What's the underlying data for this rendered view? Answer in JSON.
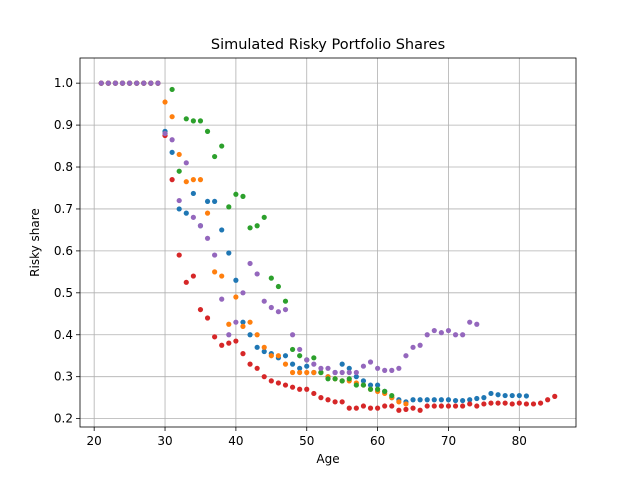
{
  "chart_data": {
    "type": "scatter",
    "title": "Simulated Risky Portfolio Shares",
    "xlabel": "Age",
    "ylabel": "Risky share",
    "xlim": [
      18,
      88
    ],
    "ylim": [
      0.18,
      1.06
    ],
    "xticks": [
      20,
      30,
      40,
      50,
      60,
      70,
      80
    ],
    "yticks": [
      0.2,
      0.3,
      0.4,
      0.5,
      0.6,
      0.7,
      0.8,
      0.9,
      1.0
    ],
    "xtick_labels": [
      "20",
      "30",
      "40",
      "50",
      "60",
      "70",
      "80"
    ],
    "ytick_labels": [
      "0.2",
      "0.3",
      "0.4",
      "0.5",
      "0.6",
      "0.7",
      "0.8",
      "0.9",
      "1.0"
    ],
    "grid": true,
    "legend": false,
    "series": [
      {
        "color": "#1f77b4",
        "points": [
          [
            21,
            1.0
          ],
          [
            22,
            1.0
          ],
          [
            23,
            1.0
          ],
          [
            24,
            1.0
          ],
          [
            25,
            1.0
          ],
          [
            26,
            1.0
          ],
          [
            27,
            1.0
          ],
          [
            28,
            1.0
          ],
          [
            29,
            1.0
          ],
          [
            30,
            0.885
          ],
          [
            31,
            0.835
          ],
          [
            32,
            0.7
          ],
          [
            33,
            0.69
          ],
          [
            34,
            0.737
          ],
          [
            35,
            0.66
          ],
          [
            36,
            0.718
          ],
          [
            37,
            0.718
          ],
          [
            38,
            0.65
          ],
          [
            39,
            0.595
          ],
          [
            40,
            0.53
          ],
          [
            41,
            0.43
          ],
          [
            42,
            0.4
          ],
          [
            43,
            0.37
          ],
          [
            44,
            0.36
          ],
          [
            45,
            0.355
          ],
          [
            46,
            0.345
          ],
          [
            47,
            0.35
          ],
          [
            48,
            0.33
          ],
          [
            49,
            0.32
          ],
          [
            50,
            0.325
          ],
          [
            51,
            0.31
          ],
          [
            52,
            0.31
          ],
          [
            53,
            0.3
          ],
          [
            54,
            0.31
          ],
          [
            55,
            0.33
          ],
          [
            56,
            0.32
          ],
          [
            57,
            0.3
          ],
          [
            58,
            0.29
          ],
          [
            59,
            0.28
          ],
          [
            60,
            0.28
          ],
          [
            61,
            0.265
          ],
          [
            62,
            0.25
          ],
          [
            63,
            0.245
          ],
          [
            64,
            0.24
          ],
          [
            65,
            0.245
          ],
          [
            66,
            0.245
          ],
          [
            67,
            0.245
          ],
          [
            68,
            0.245
          ],
          [
            69,
            0.245
          ],
          [
            70,
            0.245
          ],
          [
            71,
            0.243
          ],
          [
            72,
            0.243
          ],
          [
            73,
            0.245
          ],
          [
            74,
            0.248
          ],
          [
            75,
            0.25
          ],
          [
            76,
            0.26
          ],
          [
            77,
            0.257
          ],
          [
            78,
            0.255
          ],
          [
            79,
            0.255
          ],
          [
            80,
            0.255
          ],
          [
            81,
            0.254
          ]
        ]
      },
      {
        "color": "#ff7f0e",
        "points": [
          [
            21,
            1.0
          ],
          [
            22,
            1.0
          ],
          [
            23,
            1.0
          ],
          [
            24,
            1.0
          ],
          [
            25,
            1.0
          ],
          [
            26,
            1.0
          ],
          [
            27,
            1.0
          ],
          [
            28,
            1.0
          ],
          [
            29,
            1.0
          ],
          [
            30,
            0.955
          ],
          [
            31,
            0.92
          ],
          [
            32,
            0.83
          ],
          [
            33,
            0.765
          ],
          [
            34,
            0.77
          ],
          [
            35,
            0.77
          ],
          [
            36,
            0.69
          ],
          [
            37,
            0.55
          ],
          [
            38,
            0.54
          ],
          [
            39,
            0.425
          ],
          [
            40,
            0.49
          ],
          [
            41,
            0.42
          ],
          [
            42,
            0.43
          ],
          [
            43,
            0.4
          ],
          [
            44,
            0.37
          ],
          [
            45,
            0.35
          ],
          [
            46,
            0.35
          ],
          [
            47,
            0.33
          ],
          [
            48,
            0.31
          ],
          [
            49,
            0.31
          ],
          [
            50,
            0.31
          ],
          [
            51,
            0.31
          ],
          [
            52,
            0.31
          ],
          [
            53,
            0.3
          ],
          [
            54,
            0.295
          ],
          [
            55,
            0.29
          ],
          [
            56,
            0.29
          ],
          [
            57,
            0.285
          ],
          [
            58,
            0.28
          ],
          [
            59,
            0.27
          ],
          [
            60,
            0.265
          ],
          [
            61,
            0.26
          ],
          [
            62,
            0.25
          ],
          [
            63,
            0.24
          ],
          [
            64,
            0.235
          ]
        ]
      },
      {
        "color": "#2ca02c",
        "points": [
          [
            21,
            1.0
          ],
          [
            22,
            1.0
          ],
          [
            23,
            1.0
          ],
          [
            24,
            1.0
          ],
          [
            25,
            1.0
          ],
          [
            26,
            1.0
          ],
          [
            27,
            1.0
          ],
          [
            28,
            1.0
          ],
          [
            29,
            1.0
          ],
          [
            30,
            0.88
          ],
          [
            31,
            0.985
          ],
          [
            32,
            0.79
          ],
          [
            33,
            0.915
          ],
          [
            34,
            0.91
          ],
          [
            35,
            0.91
          ],
          [
            36,
            0.885
          ],
          [
            37,
            0.825
          ],
          [
            38,
            0.85
          ],
          [
            39,
            0.705
          ],
          [
            40,
            0.735
          ],
          [
            41,
            0.73
          ],
          [
            42,
            0.655
          ],
          [
            43,
            0.66
          ],
          [
            44,
            0.68
          ],
          [
            45,
            0.535
          ],
          [
            46,
            0.515
          ],
          [
            47,
            0.48
          ],
          [
            48,
            0.365
          ],
          [
            49,
            0.35
          ],
          [
            50,
            0.34
          ],
          [
            51,
            0.345
          ],
          [
            52,
            0.31
          ],
          [
            53,
            0.295
          ],
          [
            54,
            0.295
          ],
          [
            55,
            0.29
          ],
          [
            56,
            0.295
          ],
          [
            57,
            0.28
          ],
          [
            58,
            0.28
          ],
          [
            59,
            0.27
          ],
          [
            60,
            0.27
          ],
          [
            61,
            0.265
          ],
          [
            62,
            0.255
          ]
        ]
      },
      {
        "color": "#d62728",
        "points": [
          [
            21,
            1.0
          ],
          [
            22,
            1.0
          ],
          [
            23,
            1.0
          ],
          [
            24,
            1.0
          ],
          [
            25,
            1.0
          ],
          [
            26,
            1.0
          ],
          [
            27,
            1.0
          ],
          [
            28,
            1.0
          ],
          [
            29,
            1.0
          ],
          [
            30,
            0.875
          ],
          [
            31,
            0.77
          ],
          [
            32,
            0.59
          ],
          [
            33,
            0.525
          ],
          [
            34,
            0.54
          ],
          [
            35,
            0.46
          ],
          [
            36,
            0.44
          ],
          [
            37,
            0.395
          ],
          [
            38,
            0.375
          ],
          [
            39,
            0.38
          ],
          [
            40,
            0.385
          ],
          [
            41,
            0.355
          ],
          [
            42,
            0.33
          ],
          [
            43,
            0.32
          ],
          [
            44,
            0.3
          ],
          [
            45,
            0.29
          ],
          [
            46,
            0.285
          ],
          [
            47,
            0.28
          ],
          [
            48,
            0.275
          ],
          [
            49,
            0.27
          ],
          [
            50,
            0.27
          ],
          [
            51,
            0.26
          ],
          [
            52,
            0.25
          ],
          [
            53,
            0.245
          ],
          [
            54,
            0.24
          ],
          [
            55,
            0.24
          ],
          [
            56,
            0.225
          ],
          [
            57,
            0.225
          ],
          [
            58,
            0.23
          ],
          [
            59,
            0.225
          ],
          [
            60,
            0.225
          ],
          [
            61,
            0.23
          ],
          [
            62,
            0.23
          ],
          [
            63,
            0.22
          ],
          [
            64,
            0.222
          ],
          [
            65,
            0.225
          ],
          [
            66,
            0.22
          ],
          [
            67,
            0.23
          ],
          [
            68,
            0.23
          ],
          [
            69,
            0.23
          ],
          [
            70,
            0.23
          ],
          [
            71,
            0.23
          ],
          [
            72,
            0.23
          ],
          [
            73,
            0.235
          ],
          [
            74,
            0.23
          ],
          [
            75,
            0.235
          ],
          [
            76,
            0.237
          ],
          [
            77,
            0.237
          ],
          [
            78,
            0.237
          ],
          [
            79,
            0.235
          ],
          [
            80,
            0.237
          ],
          [
            81,
            0.235
          ],
          [
            82,
            0.235
          ],
          [
            83,
            0.237
          ],
          [
            84,
            0.245
          ],
          [
            85,
            0.253
          ]
        ]
      },
      {
        "color": "#9467bd",
        "points": [
          [
            21,
            1.0
          ],
          [
            22,
            1.0
          ],
          [
            23,
            1.0
          ],
          [
            24,
            1.0
          ],
          [
            25,
            1.0
          ],
          [
            26,
            1.0
          ],
          [
            27,
            1.0
          ],
          [
            28,
            1.0
          ],
          [
            29,
            1.0
          ],
          [
            30,
            0.88
          ],
          [
            31,
            0.865
          ],
          [
            32,
            0.72
          ],
          [
            33,
            0.81
          ],
          [
            34,
            0.68
          ],
          [
            35,
            0.66
          ],
          [
            36,
            0.63
          ],
          [
            37,
            0.59
          ],
          [
            38,
            0.485
          ],
          [
            39,
            0.4
          ],
          [
            40,
            0.43
          ],
          [
            41,
            0.5
          ],
          [
            42,
            0.57
          ],
          [
            43,
            0.545
          ],
          [
            44,
            0.48
          ],
          [
            45,
            0.465
          ],
          [
            46,
            0.455
          ],
          [
            47,
            0.46
          ],
          [
            48,
            0.4
          ],
          [
            49,
            0.365
          ],
          [
            50,
            0.34
          ],
          [
            51,
            0.33
          ],
          [
            52,
            0.32
          ],
          [
            53,
            0.32
          ],
          [
            54,
            0.31
          ],
          [
            55,
            0.31
          ],
          [
            56,
            0.31
          ],
          [
            57,
            0.31
          ],
          [
            58,
            0.325
          ],
          [
            59,
            0.335
          ],
          [
            60,
            0.32
          ],
          [
            61,
            0.315
          ],
          [
            62,
            0.315
          ],
          [
            63,
            0.32
          ],
          [
            64,
            0.35
          ],
          [
            65,
            0.37
          ],
          [
            66,
            0.375
          ],
          [
            67,
            0.4
          ],
          [
            68,
            0.41
          ],
          [
            69,
            0.405
          ],
          [
            70,
            0.41
          ],
          [
            71,
            0.4
          ],
          [
            72,
            0.4
          ],
          [
            73,
            0.43
          ],
          [
            74,
            0.425
          ]
        ]
      }
    ]
  }
}
